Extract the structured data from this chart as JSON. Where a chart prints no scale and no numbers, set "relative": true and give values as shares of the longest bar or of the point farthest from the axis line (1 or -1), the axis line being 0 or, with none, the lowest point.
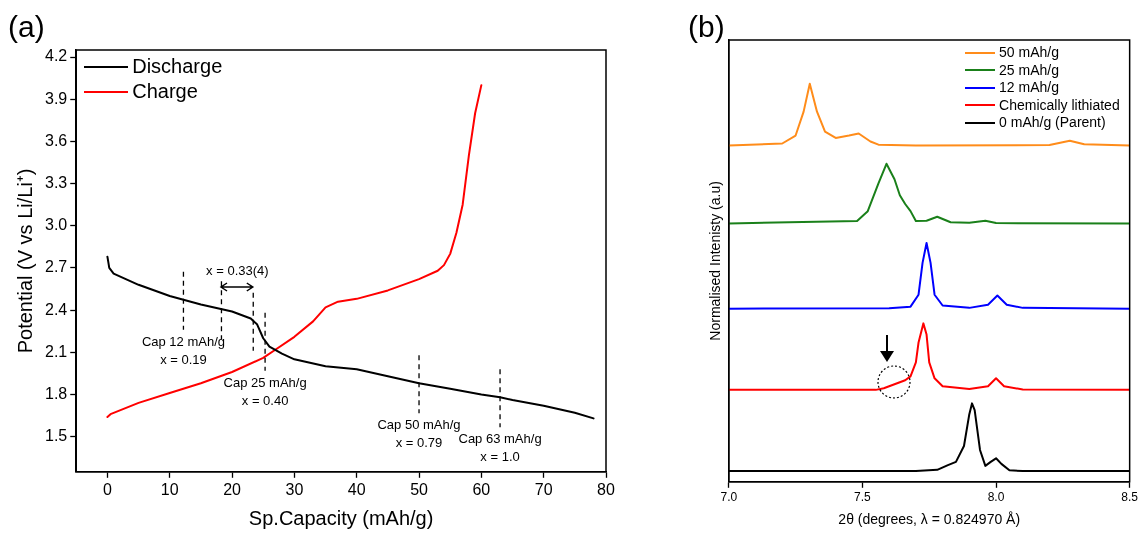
{
  "chart_data": [
    {
      "type": "line",
      "title": "(a)",
      "xlabel": "Sp.Capacity (mAh/g)",
      "ylabel": "Potential (V vs Li/Li⁺)",
      "xlim": [
        -5,
        80
      ],
      "xticks": [
        0,
        10,
        20,
        30,
        40,
        50,
        60,
        70,
        80
      ],
      "ylim": [
        1.25,
        4.25
      ],
      "yticks": [
        1.5,
        1.8,
        2.1,
        2.4,
        2.7,
        {
          "value": 3,
          "label": "3.0"
        },
        3.3,
        3.6,
        3.9,
        4.2
      ],
      "legend": "top left",
      "marker": "none",
      "line_style": "solid",
      "series": [
        {
          "name": "Discharge",
          "color": "#000000",
          "x": [
            0,
            0.3,
            1,
            5,
            10,
            15,
            20,
            23,
            24,
            25,
            26,
            28,
            30,
            35,
            40,
            45,
            50,
            55,
            60,
            63,
            65,
            70,
            75,
            78
          ],
          "values": [
            2.78,
            2.7,
            2.66,
            2.58,
            2.5,
            2.44,
            2.39,
            2.34,
            2.3,
            2.2,
            2.14,
            2.09,
            2.05,
            2.0,
            1.98,
            1.93,
            1.88,
            1.84,
            1.8,
            1.78,
            1.76,
            1.72,
            1.67,
            1.63
          ]
        },
        {
          "name": "Charge",
          "color": "#ff0000",
          "x": [
            0,
            0.5,
            5,
            10,
            15,
            20,
            25,
            27,
            30,
            33,
            35,
            37,
            40,
            45,
            50,
            53,
            54,
            55,
            56,
            57,
            58,
            59,
            60
          ],
          "values": [
            1.64,
            1.66,
            1.74,
            1.81,
            1.88,
            1.96,
            2.06,
            2.12,
            2.21,
            2.32,
            2.42,
            2.46,
            2.48,
            2.54,
            2.62,
            2.68,
            2.72,
            2.8,
            2.95,
            3.15,
            3.5,
            3.8,
            4.0
          ]
        }
      ],
      "ref_lines": [
        {
          "axis": "x",
          "value": 12.2,
          "line_style": "dashed",
          "label": "Cap 12 mAh/g\nx = 0.19"
        },
        {
          "axis": "x",
          "value": 18.3,
          "line_style": "dashed"
        },
        {
          "axis": "x",
          "value": 23.4,
          "line_style": "dashed"
        },
        {
          "axis": "x",
          "value": 25.3,
          "line_style": "dashed",
          "label": "Cap 25 mAh/g\nx = 0.40"
        },
        {
          "axis": "x",
          "value": 50,
          "line_style": "dashed",
          "label": "Cap 50 mAh/g\nx = 0.79"
        },
        {
          "axis": "x",
          "value": 63,
          "line_style": "dashed",
          "label": "Cap 63 mAh/g\nx = 1.0"
        }
      ],
      "annotations": [
        "x = 0.33(4)"
      ]
    },
    {
      "type": "line",
      "title": "(b)",
      "xlabel": "2θ (degrees, λ = 0.824970 Å)",
      "ylabel": "Normalised Intenisty (a.u)",
      "relative": true,
      "xlim": [
        7.0,
        8.5
      ],
      "xticks": [
        {
          "value": 7.0,
          "label": "7.0"
        },
        {
          "value": 7.5,
          "label": "7.5"
        },
        {
          "value": 8.0,
          "label": "8.0"
        },
        {
          "value": 8.5,
          "label": "8.5"
        }
      ],
      "legend": "top right",
      "marker": "none",
      "line_style": "solid",
      "series": [
        {
          "name": "50 mAh/g",
          "color": "#ff8c1a",
          "x": [
            7.0,
            7.2,
            7.25,
            7.28,
            7.303,
            7.33,
            7.36,
            7.4,
            7.45,
            7.486,
            7.53,
            7.56,
            7.7,
            8.2,
            8.276,
            8.33,
            8.5
          ],
          "values": [
            0.845,
            0.85,
            0.87,
            0.93,
            1.0,
            0.93,
            0.88,
            0.864,
            0.87,
            0.875,
            0.855,
            0.847,
            0.845,
            0.846,
            0.857,
            0.848,
            0.845
          ]
        },
        {
          "name": "25 mAh/g",
          "color": "#1a801a",
          "x": [
            7.0,
            7.48,
            7.52,
            7.56,
            7.59,
            7.62,
            7.64,
            7.66,
            7.68,
            7.7,
            7.74,
            7.78,
            7.83,
            7.9,
            7.96,
            8.0,
            8.5
          ],
          "values": [
            0.649,
            0.655,
            0.68,
            0.75,
            0.799,
            0.76,
            0.72,
            0.698,
            0.68,
            0.655,
            0.656,
            0.666,
            0.652,
            0.651,
            0.656,
            0.65,
            0.649
          ]
        },
        {
          "name": "12 mAh/g",
          "color": "#0000ff",
          "x": [
            7.0,
            7.6,
            7.68,
            7.71,
            7.725,
            7.74,
            7.755,
            7.77,
            7.8,
            7.9,
            7.97,
            8.005,
            8.04,
            8.1,
            8.5
          ],
          "values": [
            0.435,
            0.436,
            0.44,
            0.47,
            0.55,
            0.6,
            0.55,
            0.47,
            0.443,
            0.437,
            0.445,
            0.468,
            0.445,
            0.437,
            0.435
          ]
        },
        {
          "name": "Chemically lithiated",
          "color": "#ff0000",
          "x": [
            7.0,
            7.55,
            7.58,
            7.62,
            7.66,
            7.68,
            7.7,
            7.71,
            7.728,
            7.74,
            7.75,
            7.77,
            7.8,
            7.9,
            7.97,
            8.0,
            8.03,
            8.1,
            8.5
          ],
          "values": [
            0.231,
            0.231,
            0.235,
            0.245,
            0.255,
            0.265,
            0.3,
            0.35,
            0.398,
            0.37,
            0.3,
            0.26,
            0.24,
            0.233,
            0.24,
            0.26,
            0.24,
            0.232,
            0.231
          ]
        },
        {
          "name": "0 mAh/g (Parent)",
          "color": "#000000",
          "x": [
            7.0,
            7.7,
            7.78,
            7.82,
            7.85,
            7.88,
            7.9,
            7.91,
            7.92,
            7.94,
            7.96,
            7.98,
            8.0,
            8.02,
            8.05,
            8.1,
            8.5
          ],
          "values": [
            0.027,
            0.027,
            0.03,
            0.042,
            0.05,
            0.09,
            0.17,
            0.197,
            0.18,
            0.08,
            0.04,
            0.05,
            0.059,
            0.045,
            0.029,
            0.027,
            0.027
          ]
        }
      ]
    }
  ]
}
